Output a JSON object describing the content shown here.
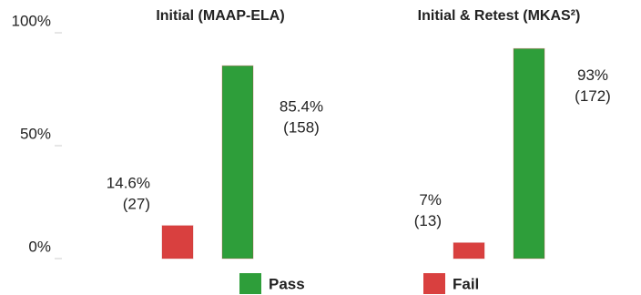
{
  "chart_data": {
    "type": "bar",
    "categories": [
      "Initial (MAAP-ELA)",
      "Initial & Retest (MKAS²)"
    ],
    "series": [
      {
        "name": "Fail",
        "color": "#d9403f",
        "values": [
          14.6,
          7
        ],
        "value_labels": [
          "14.6%",
          "7%"
        ],
        "count_labels": [
          "(27)",
          "(13)"
        ]
      },
      {
        "name": "Pass",
        "color": "#2e9e3a",
        "values": [
          85.4,
          93
        ],
        "value_labels": [
          "85.4%",
          "93%"
        ],
        "count_labels": [
          "(158)",
          "(172)"
        ]
      }
    ],
    "ylim": [
      0,
      100
    ],
    "yticks": [
      {
        "value": 0,
        "label": "0%"
      },
      {
        "value": 50,
        "label": "50%"
      },
      {
        "value": 100,
        "label": "100%"
      }
    ]
  }
}
